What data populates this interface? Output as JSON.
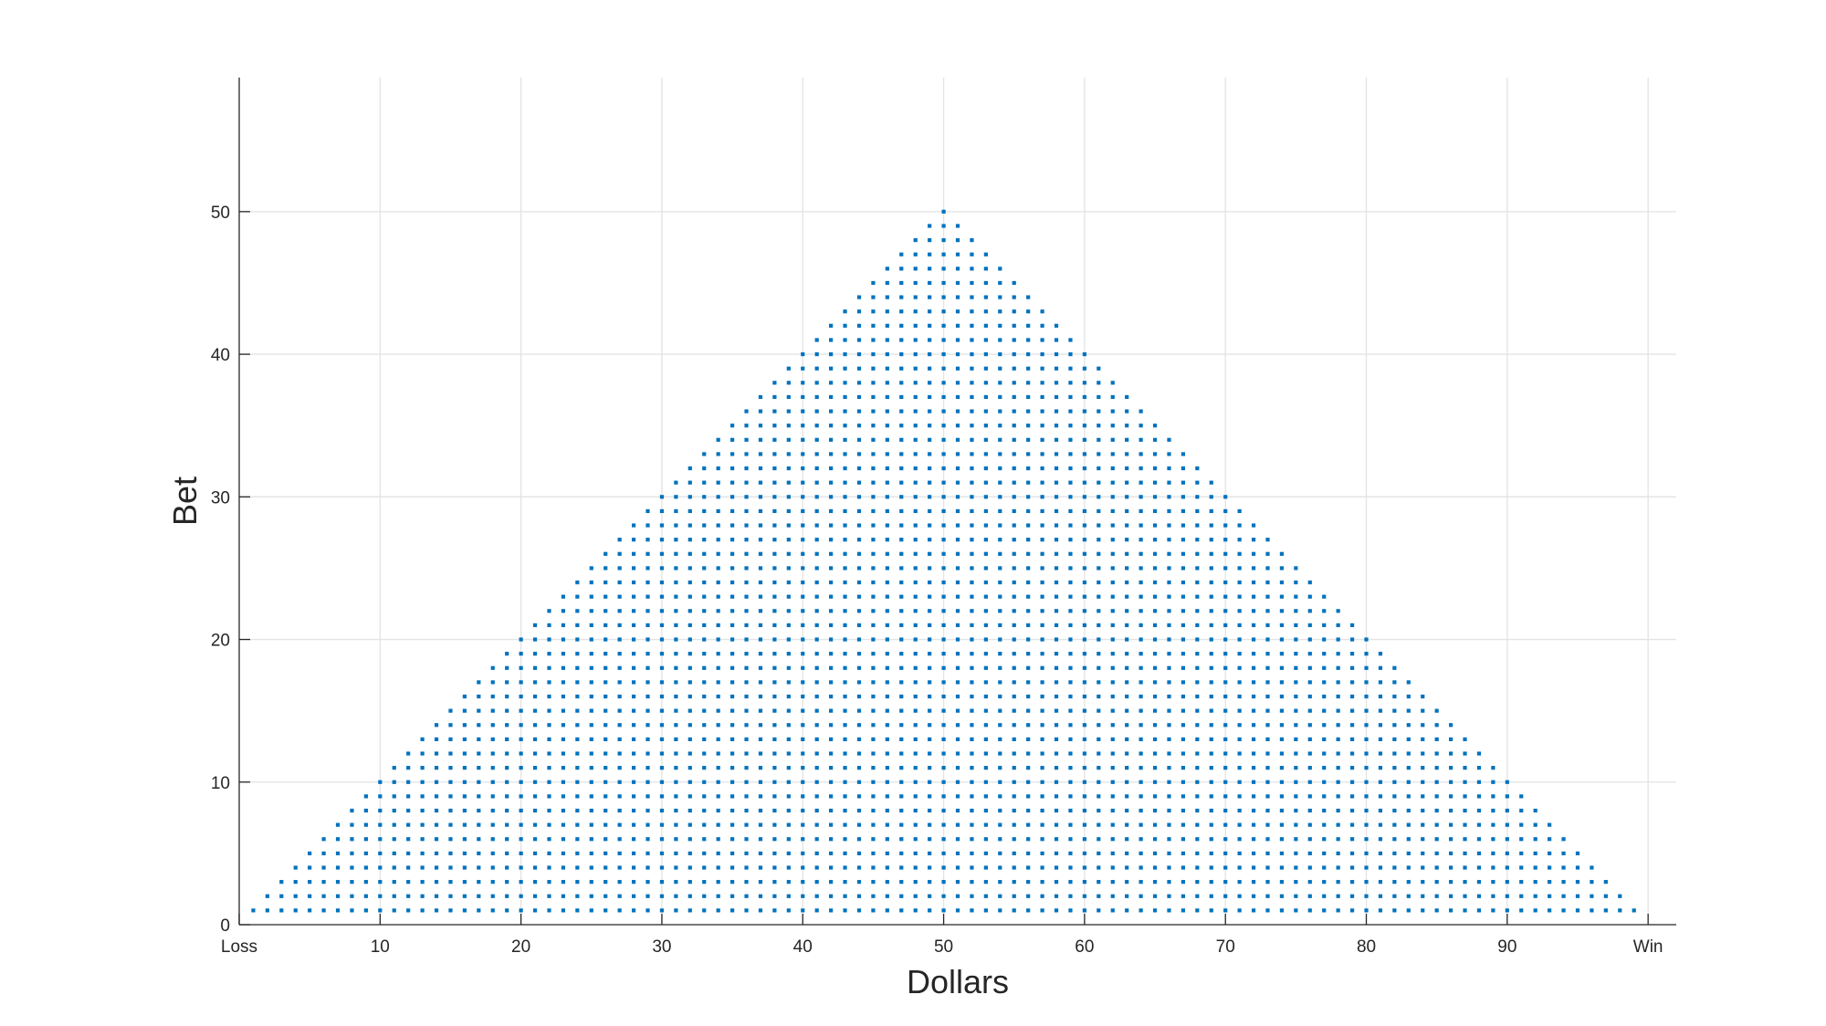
{
  "chart_data": {
    "type": "scatter",
    "title": "",
    "xlabel": "Dollars",
    "ylabel": "Bet",
    "xlim": [
      0,
      102
    ],
    "ylim": [
      0,
      59.4
    ],
    "grid": true,
    "x_ticks": [
      {
        "value": 0,
        "label": "Loss"
      },
      {
        "value": 10,
        "label": "10"
      },
      {
        "value": 20,
        "label": "20"
      },
      {
        "value": 30,
        "label": "30"
      },
      {
        "value": 40,
        "label": "40"
      },
      {
        "value": 50,
        "label": "50"
      },
      {
        "value": 60,
        "label": "60"
      },
      {
        "value": 70,
        "label": "70"
      },
      {
        "value": 80,
        "label": "80"
      },
      {
        "value": 90,
        "label": "90"
      },
      {
        "value": 100,
        "label": "Win"
      }
    ],
    "y_ticks": [
      {
        "value": 0,
        "label": "0"
      },
      {
        "value": 10,
        "label": "10"
      },
      {
        "value": 20,
        "label": "20"
      },
      {
        "value": 30,
        "label": "30"
      },
      {
        "value": 40,
        "label": "40"
      },
      {
        "value": 50,
        "label": "50"
      }
    ],
    "series": [
      {
        "marker_color": "#0072BD",
        "rule": "for each dollar amount x from 1 to 99, a point at every integer bet y from 1 to min(x, 100 - x)",
        "x_range": [
          1,
          99
        ],
        "bet_max": "min(x, 100 - x)"
      }
    ]
  }
}
